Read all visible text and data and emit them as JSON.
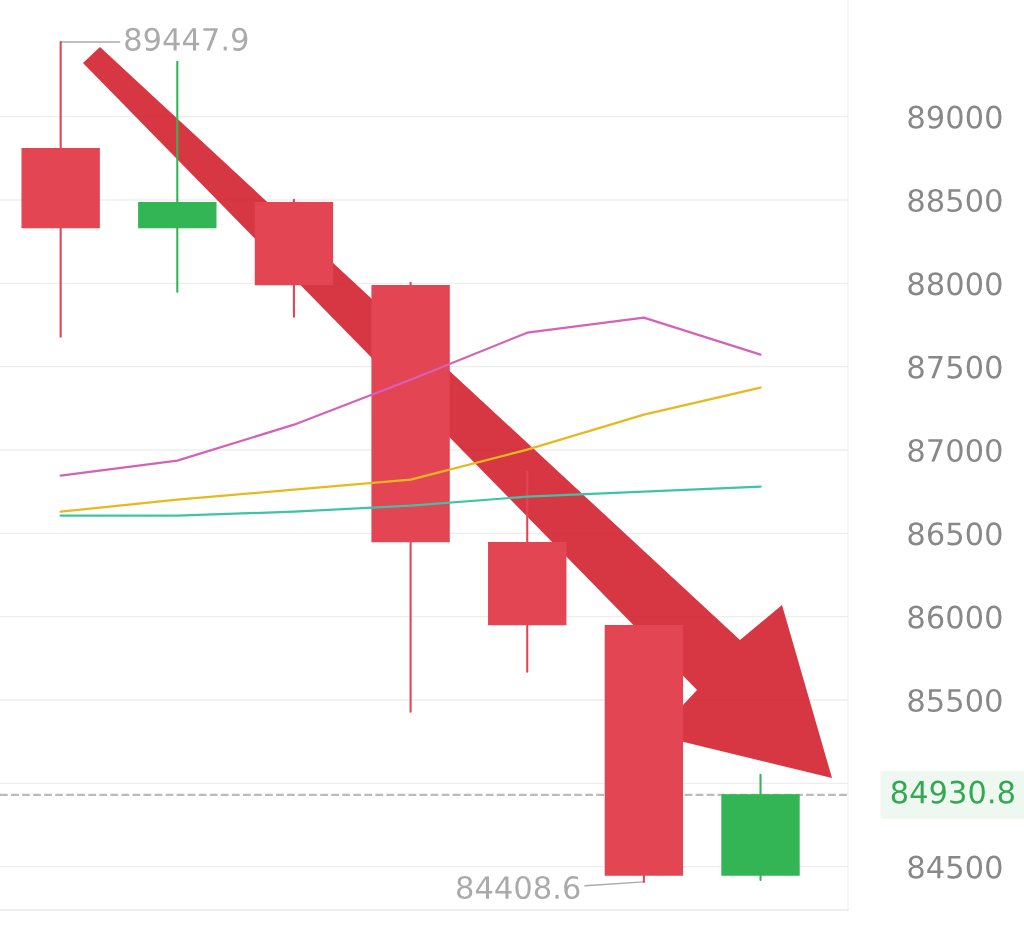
{
  "chart_data": {
    "type": "candlestick",
    "categories": [
      null,
      null,
      null,
      null,
      null,
      null,
      null
    ],
    "ohlc": [
      [
        88808,
        89447.9,
        87680,
        88334
      ],
      [
        88334,
        89330,
        87950,
        88484
      ],
      [
        88484,
        88502,
        87800,
        87992
      ],
      [
        87986,
        88004,
        85430,
        86450
      ],
      [
        86444,
        86870,
        85670,
        85952
      ],
      [
        85946,
        85946,
        84408.6,
        84450
      ],
      [
        84450,
        85052,
        84420,
        84930.8
      ]
    ],
    "colors": [
      "#e34553",
      "#33b555",
      "#e34553",
      "#e34553",
      "#e34553",
      "#e34553",
      "#33b555"
    ],
    "series": [
      {
        "type": "line",
        "color": "#d462b8",
        "values": [
          86846,
          86936,
          87152,
          87422,
          87704,
          87794,
          87572
        ]
      },
      {
        "type": "line",
        "color": "#e8b820",
        "values": [
          86630,
          86702,
          86762,
          86822,
          87002,
          87212,
          87374
        ]
      },
      {
        "type": "line",
        "color": "#3cc4a8",
        "values": [
          86606,
          86606,
          86630,
          86666,
          86720,
          86750,
          86780
        ]
      }
    ],
    "ylim": [
      84240,
      89700
    ],
    "yticks": [
      84500,
      {
        "value": 85000,
        "label": null
      },
      85500,
      86000,
      86500,
      87000,
      87500,
      88000,
      88500,
      89000
    ],
    "grid": "y",
    "tick_labels": "y",
    "ref_lines": [
      {
        "axis": "y",
        "value": 84930.8,
        "label": "84930.8",
        "color": "#bbbbbb",
        "line_style": "dashed"
      }
    ],
    "annotations": [
      "89447.9",
      "84408.6"
    ]
  }
}
